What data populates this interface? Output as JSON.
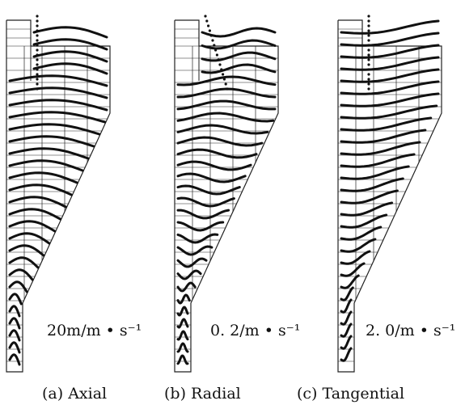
{
  "figure": {
    "panels": [
      {
        "id": "a",
        "caption": "(a) Axial",
        "scale_label": "20m/m • s⁻¹",
        "profile_shape": "axial"
      },
      {
        "id": "b",
        "caption": "(b) Radial",
        "scale_label": "0. 2/m • s⁻¹",
        "profile_shape": "radial"
      },
      {
        "id": "c",
        "caption": "(c) Tangential",
        "scale_label": "2. 0/m • s⁻¹",
        "profile_shape": "tangential"
      }
    ],
    "colors": {
      "ink": "#111111",
      "grid": "#222222",
      "background": "#ffffff"
    }
  }
}
